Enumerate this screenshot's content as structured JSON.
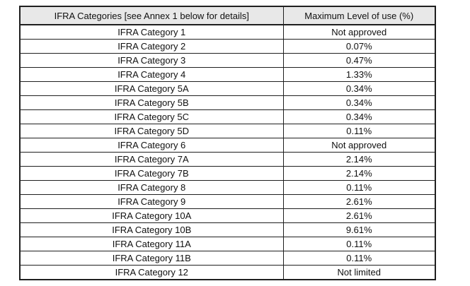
{
  "colors": {
    "header_bg": "#e8e8e8",
    "border": "#1f1f1f"
  },
  "table": {
    "headers": {
      "category": "IFRA Categories [see Annex 1 below for details]",
      "max_level": "Maximum Level of use (%)"
    },
    "rows": [
      {
        "category": "IFRA Category 1",
        "max_level": "Not approved"
      },
      {
        "category": "IFRA Category 2",
        "max_level": "0.07%"
      },
      {
        "category": "IFRA Category 3",
        "max_level": "0.47%"
      },
      {
        "category": "IFRA Category 4",
        "max_level": "1.33%"
      },
      {
        "category": "IFRA Category 5A",
        "max_level": "0.34%"
      },
      {
        "category": "IFRA Category 5B",
        "max_level": "0.34%"
      },
      {
        "category": "IFRA Category 5C",
        "max_level": "0.34%"
      },
      {
        "category": "IFRA Category 5D",
        "max_level": "0.11%"
      },
      {
        "category": "IFRA Category 6",
        "max_level": "Not approved"
      },
      {
        "category": "IFRA Category 7A",
        "max_level": "2.14%"
      },
      {
        "category": "IFRA Category 7B",
        "max_level": "2.14%"
      },
      {
        "category": "IFRA Category 8",
        "max_level": "0.11%"
      },
      {
        "category": "IFRA Category 9",
        "max_level": "2.61%"
      },
      {
        "category": "IFRA Category 10A",
        "max_level": "2.61%"
      },
      {
        "category": "IFRA Category 10B",
        "max_level": "9.61%"
      },
      {
        "category": "IFRA Category 11A",
        "max_level": "0.11%"
      },
      {
        "category": "IFRA Category 11B",
        "max_level": "0.11%"
      },
      {
        "category": "IFRA Category 12",
        "max_level": "Not limited"
      }
    ]
  }
}
